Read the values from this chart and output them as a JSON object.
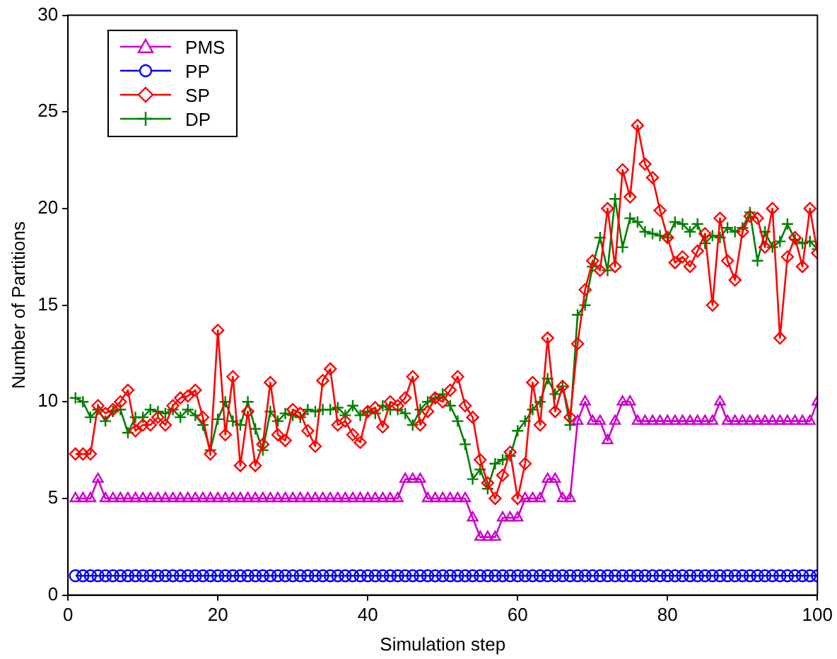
{
  "chart_data": {
    "type": "line",
    "xlabel": "Simulation step",
    "ylabel": "Number of Partitions",
    "xlim": [
      0,
      100
    ],
    "xticks": [
      0,
      20,
      40,
      60,
      80,
      100
    ],
    "ylim": [
      0,
      30
    ],
    "yticks": [
      0,
      5,
      10,
      15,
      20,
      25,
      30
    ],
    "grid": false,
    "legend": "top left",
    "line_style": "solid",
    "x": [
      1,
      2,
      3,
      4,
      5,
      6,
      7,
      8,
      9,
      10,
      11,
      12,
      13,
      14,
      15,
      16,
      17,
      18,
      19,
      20,
      21,
      22,
      23,
      24,
      25,
      26,
      27,
      28,
      29,
      30,
      31,
      32,
      33,
      34,
      35,
      36,
      37,
      38,
      39,
      40,
      41,
      42,
      43,
      44,
      45,
      46,
      47,
      48,
      49,
      50,
      51,
      52,
      53,
      54,
      55,
      56,
      57,
      58,
      59,
      60,
      61,
      62,
      63,
      64,
      65,
      66,
      67,
      68,
      69,
      70,
      71,
      72,
      73,
      74,
      75,
      76,
      77,
      78,
      79,
      80,
      81,
      82,
      83,
      84,
      85,
      86,
      87,
      88,
      89,
      90,
      91,
      92,
      93,
      94,
      95,
      96,
      97,
      98,
      99,
      100
    ],
    "series": [
      {
        "name": "PMS",
        "color": "#cc00cc",
        "marker": "triangle",
        "values": [
          5,
          5,
          5,
          6,
          5,
          5,
          5,
          5,
          5,
          5,
          5,
          5,
          5,
          5,
          5,
          5,
          5,
          5,
          5,
          5,
          5,
          5,
          5,
          5,
          5,
          5,
          5,
          5,
          5,
          5,
          5,
          5,
          5,
          5,
          5,
          5,
          5,
          5,
          5,
          5,
          5,
          5,
          5,
          5,
          6,
          6,
          6,
          5,
          5,
          5,
          5,
          5,
          5,
          4,
          3,
          3,
          3,
          4,
          4,
          4,
          5,
          5,
          5,
          6,
          6,
          5,
          5,
          9,
          10,
          9,
          9,
          8,
          9,
          10,
          10,
          9,
          9,
          9,
          9,
          9,
          9,
          9,
          9,
          9,
          9,
          9,
          10,
          9,
          9,
          9,
          9,
          9,
          9,
          9,
          9,
          9,
          9,
          9,
          9,
          10
        ]
      },
      {
        "name": "PP",
        "color": "#0000ff",
        "marker": "circle",
        "values": [
          1,
          1,
          1,
          1,
          1,
          1,
          1,
          1,
          1,
          1,
          1,
          1,
          1,
          1,
          1,
          1,
          1,
          1,
          1,
          1,
          1,
          1,
          1,
          1,
          1,
          1,
          1,
          1,
          1,
          1,
          1,
          1,
          1,
          1,
          1,
          1,
          1,
          1,
          1,
          1,
          1,
          1,
          1,
          1,
          1,
          1,
          1,
          1,
          1,
          1,
          1,
          1,
          1,
          1,
          1,
          1,
          1,
          1,
          1,
          1,
          1,
          1,
          1,
          1,
          1,
          1,
          1,
          1,
          1,
          1,
          1,
          1,
          1,
          1,
          1,
          1,
          1,
          1,
          1,
          1,
          1,
          1,
          1,
          1,
          1,
          1,
          1,
          1,
          1,
          1,
          1,
          1,
          1,
          1,
          1,
          1,
          1,
          1,
          1,
          1
        ]
      },
      {
        "name": "SP",
        "color": "#ff0000",
        "marker": "diamond",
        "values": [
          7.3,
          7.3,
          7.3,
          9.8,
          9.4,
          9.6,
          10,
          10.6,
          8.5,
          8.8,
          8.8,
          9.2,
          8.8,
          9.8,
          10.2,
          10.3,
          10.6,
          9.2,
          7.3,
          13.7,
          8.3,
          11.3,
          6.7,
          9.5,
          6.7,
          7.8,
          11,
          8.3,
          8,
          9.6,
          9.4,
          8.5,
          7.7,
          11.1,
          11.7,
          8.8,
          9,
          8.3,
          7.9,
          9.5,
          9.7,
          8.7,
          10,
          9.8,
          10.2,
          11.3,
          8.8,
          9.5,
          10.2,
          10,
          10.6,
          11.3,
          9.8,
          9.2,
          7,
          5.8,
          5,
          6.2,
          7.4,
          5,
          6.8,
          11,
          8.8,
          13.3,
          9.5,
          10.8,
          9.2,
          13,
          15.8,
          17.3,
          16.8,
          20,
          17,
          22,
          20.6,
          24.3,
          22.3,
          21.6,
          19.9,
          18.5,
          17.2,
          17.5,
          17,
          17.8,
          18.7,
          15,
          19.5,
          17.3,
          16.3,
          18.8,
          19.6,
          19.5,
          18,
          20,
          13.3,
          17.5,
          18.5,
          17,
          20,
          17.7
        ]
      },
      {
        "name": "DP",
        "color": "#008000",
        "marker": "cross",
        "values": [
          10.2,
          10,
          9.2,
          9.6,
          9,
          9.5,
          9.6,
          8.4,
          9.2,
          9.2,
          9.6,
          9.5,
          9.4,
          9.6,
          9.2,
          9.6,
          9.3,
          8.8,
          7.5,
          9.1,
          10,
          9,
          8.8,
          10,
          8.6,
          7.5,
          9.5,
          9,
          9.4,
          9.3,
          9.2,
          9.6,
          9.5,
          9.6,
          9.6,
          9.7,
          9.3,
          9.8,
          9.3,
          9.5,
          9.4,
          9.8,
          9.6,
          9.6,
          9.4,
          8.8,
          9.6,
          10,
          10.2,
          10.4,
          9.8,
          9,
          7.8,
          6,
          6.5,
          5.5,
          6.8,
          7,
          7.2,
          8.5,
          9,
          9.6,
          10,
          11.2,
          10.4,
          10.8,
          8.8,
          14.5,
          15,
          17,
          18.5,
          16.8,
          20.5,
          18,
          19.5,
          19.3,
          18.8,
          18.7,
          18.6,
          18.5,
          19.3,
          19.2,
          18.8,
          19.2,
          18.2,
          18.6,
          18.5,
          19,
          18.8,
          19,
          19.8,
          17.3,
          18.8,
          18,
          18.3,
          19.2,
          18.4,
          18.2,
          18.3,
          17.9
        ]
      }
    ]
  }
}
